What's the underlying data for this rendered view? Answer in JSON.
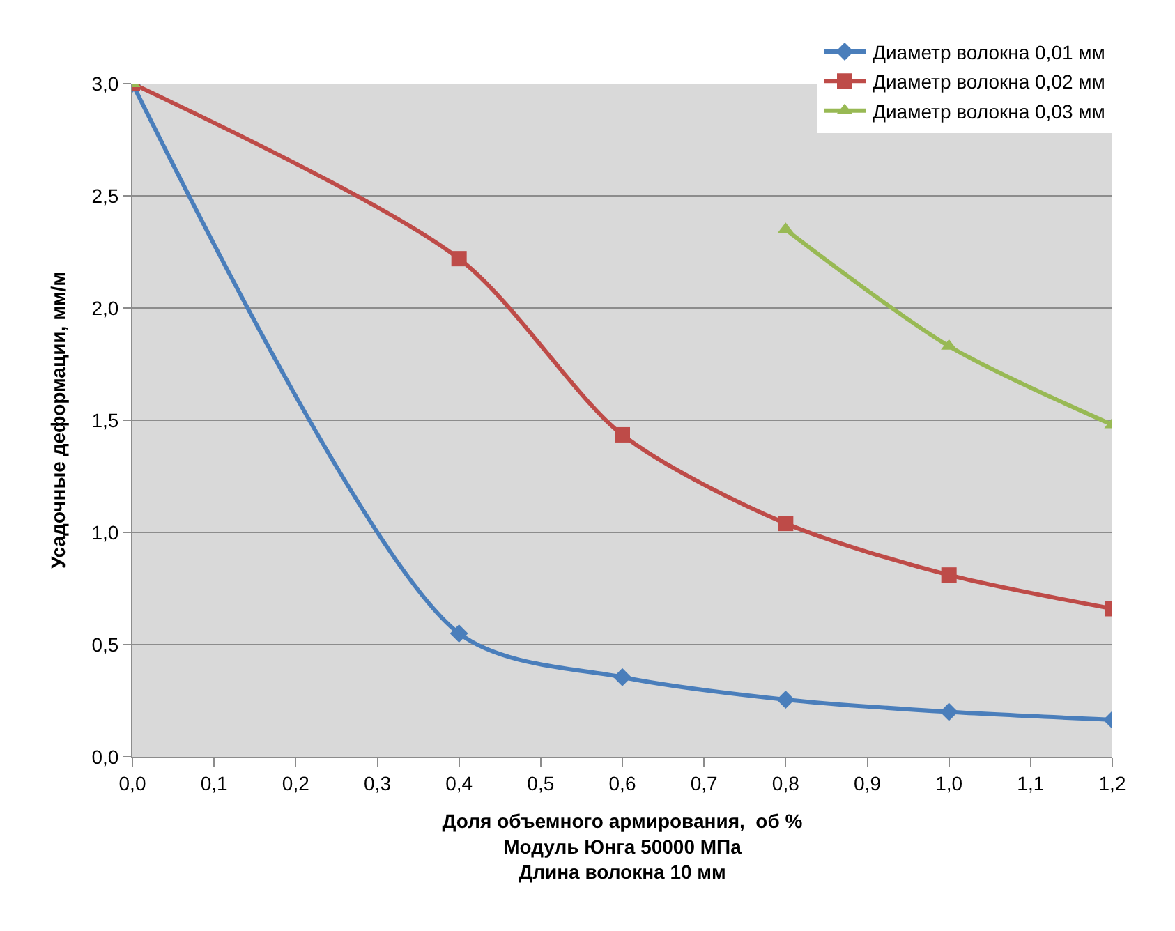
{
  "chart_data": {
    "type": "line",
    "xlabel": "Доля объемного армирования,  об %\nМодуль Юнга 50000 МПа\nДлина волокна 10 мм",
    "ylabel": "Усадочные деформации, мм/м",
    "x": [
      0.0,
      0.4,
      0.6,
      0.8,
      1.0,
      1.2
    ],
    "series": [
      {
        "name": "Диаметр волокна 0,01 мм",
        "color": "#4a7ebb",
        "marker": "diamond",
        "values": [
          3.0,
          0.55,
          0.355,
          0.255,
          0.2,
          0.165
        ]
      },
      {
        "name": "Диаметр волокна 0,02 мм",
        "color": "#be4b48",
        "marker": "square",
        "values": [
          3.0,
          2.22,
          1.435,
          1.04,
          0.81,
          0.66
        ]
      },
      {
        "name": "Диаметр волокна 0,03 мм",
        "color": "#98b954",
        "marker": "triangle",
        "values": [
          3.0,
          null,
          null,
          2.35,
          1.83,
          1.48
        ]
      }
    ],
    "xlim": [
      0.0,
      1.2
    ],
    "xticks": [
      {
        "value": 0.0,
        "label": "0,0"
      },
      {
        "value": 0.1,
        "label": "0,1"
      },
      {
        "value": 0.2,
        "label": "0,2"
      },
      {
        "value": 0.3,
        "label": "0,3"
      },
      {
        "value": 0.4,
        "label": "0,4"
      },
      {
        "value": 0.5,
        "label": "0,5"
      },
      {
        "value": 0.6,
        "label": "0,6"
      },
      {
        "value": 0.7,
        "label": "0,7"
      },
      {
        "value": 0.8,
        "label": "0,8"
      },
      {
        "value": 0.9,
        "label": "0,9"
      },
      {
        "value": 1.0,
        "label": "1,0"
      },
      {
        "value": 1.1,
        "label": "1,1"
      },
      {
        "value": 1.2,
        "label": "1,2"
      }
    ],
    "ylim": [
      0.0,
      3.0
    ],
    "yticks": [
      {
        "value": 0.0,
        "label": "0,0"
      },
      {
        "value": 0.5,
        "label": "0,5"
      },
      {
        "value": 1.0,
        "label": "1,0"
      },
      {
        "value": 1.5,
        "label": "1,5"
      },
      {
        "value": 2.0,
        "label": "2,0"
      },
      {
        "value": 2.5,
        "label": "2,5"
      },
      {
        "value": 3.0,
        "label": "3,0"
      }
    ],
    "grid": "y",
    "legend": "top right",
    "line_style": "solid"
  }
}
